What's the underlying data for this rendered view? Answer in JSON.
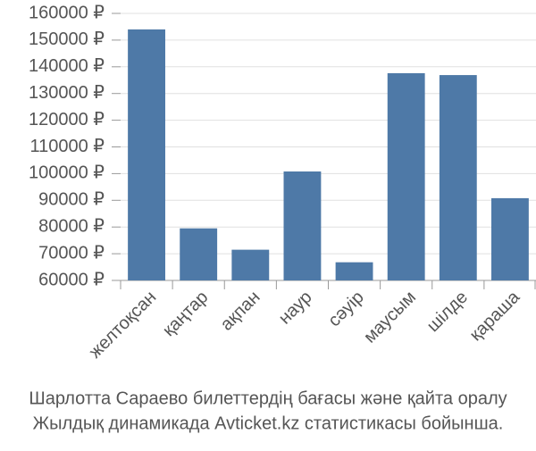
{
  "chart_data": {
    "type": "bar",
    "caption": [
      "Шарлотта Сараево билеттердің бағасы және қайта оралу",
      "Жылдық динамикада Avticket.kz статистикасы бойынша."
    ],
    "categories": [
      "желтоқсан",
      "қаңтар",
      "ақпан",
      "наур",
      "сәуір",
      "маусым",
      "шілде",
      "қараша"
    ],
    "values": [
      154000,
      79500,
      71500,
      100800,
      66800,
      137600,
      136900,
      90800
    ],
    "color": "#4e79a7",
    "ylim": [
      60000,
      160000
    ],
    "yticks": [
      {
        "value": 60000,
        "label": "60000 ₽"
      },
      {
        "value": 70000,
        "label": "70000 ₽"
      },
      {
        "value": 80000,
        "label": "80000 ₽"
      },
      {
        "value": 90000,
        "label": "90000 ₽"
      },
      {
        "value": 100000,
        "label": "100000 ₽"
      },
      {
        "value": 110000,
        "label": "110000 ₽"
      },
      {
        "value": 120000,
        "label": "120000 ₽"
      },
      {
        "value": 130000,
        "label": "130000 ₽"
      },
      {
        "value": 140000,
        "label": "140000 ₽"
      },
      {
        "value": 150000,
        "label": "150000 ₽"
      },
      {
        "value": 160000,
        "label": "160000 ₽"
      }
    ],
    "grid": true
  }
}
